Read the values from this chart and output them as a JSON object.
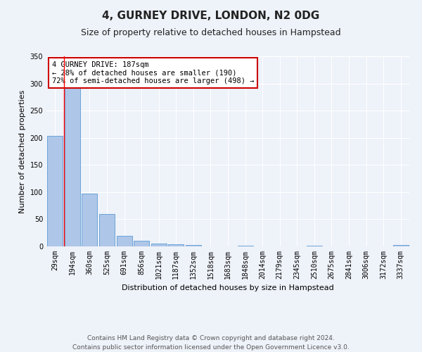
{
  "title": "4, GURNEY DRIVE, LONDON, N2 0DG",
  "subtitle": "Size of property relative to detached houses in Hampstead",
  "xlabel": "Distribution of detached houses by size in Hampstead",
  "ylabel": "Number of detached properties",
  "bin_labels": [
    "29sqm",
    "194sqm",
    "360sqm",
    "525sqm",
    "691sqm",
    "856sqm",
    "1021sqm",
    "1187sqm",
    "1352sqm",
    "1518sqm",
    "1683sqm",
    "1848sqm",
    "2014sqm",
    "2179sqm",
    "2345sqm",
    "2510sqm",
    "2675sqm",
    "2841sqm",
    "3006sqm",
    "3172sqm",
    "3337sqm"
  ],
  "bar_heights": [
    204,
    292,
    97,
    60,
    20,
    11,
    5,
    4,
    2,
    0,
    0,
    1,
    0,
    0,
    0,
    1,
    0,
    0,
    0,
    0,
    2
  ],
  "bar_color": "#aec6e8",
  "bar_edge_color": "#5b9bd5",
  "annotation_title": "4 GURNEY DRIVE: 187sqm",
  "annotation_line2": "← 28% of detached houses are smaller (190)",
  "annotation_line3": "72% of semi-detached houses are larger (498) →",
  "annotation_box_color": "#ffffff",
  "annotation_box_edge": "#cc0000",
  "ylim": [
    0,
    350
  ],
  "yticks": [
    0,
    50,
    100,
    150,
    200,
    250,
    300,
    350
  ],
  "footer_line1": "Contains HM Land Registry data © Crown copyright and database right 2024.",
  "footer_line2": "Contains public sector information licensed under the Open Government Licence v3.0.",
  "bg_color": "#eef2f9",
  "grid_color": "#ffffff",
  "title_fontsize": 11,
  "subtitle_fontsize": 9,
  "axis_label_fontsize": 8,
  "tick_fontsize": 7,
  "footer_fontsize": 6.5,
  "annot_fontsize": 7.5
}
